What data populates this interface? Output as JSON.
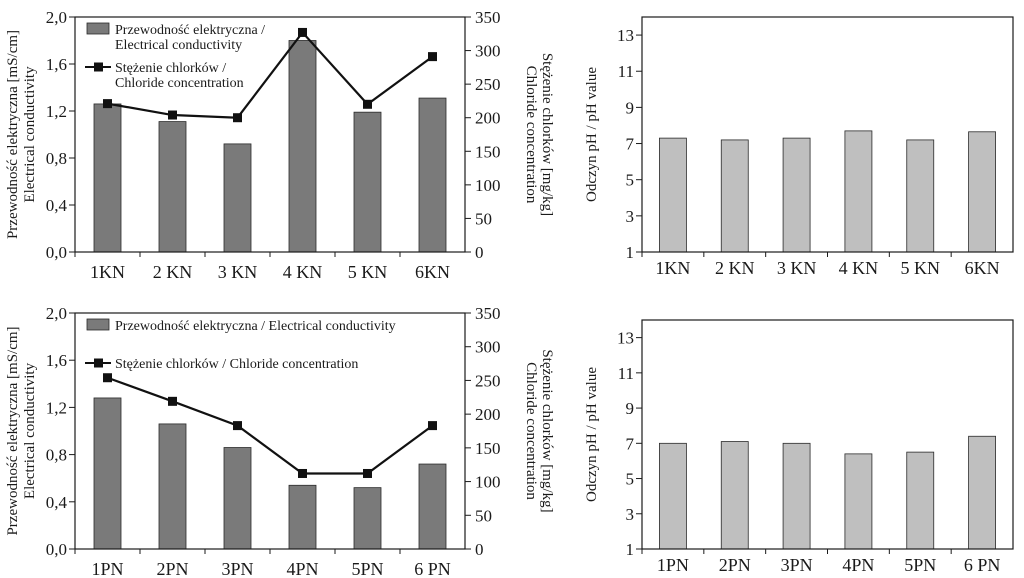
{
  "chart_data": [
    {
      "type": "bar+line",
      "categories": [
        "1KN",
        "2 KN",
        "3 KN",
        "4 KN",
        "5 KN",
        "6KN"
      ],
      "ylabel_left": [
        "Przewodność elektryczna [mS/cm]",
        "Electrical conductivity"
      ],
      "ylabel_right": [
        "Stężenie chlorków [mg/kg]",
        "Chloride concentration"
      ],
      "ylim_left": [
        0,
        2
      ],
      "yticks_left": [
        "0,0",
        "0,4",
        "0,8",
        "1,2",
        "1,6",
        "2,0"
      ],
      "ylim_right": [
        0,
        350
      ],
      "yticks_right": [
        "0",
        "50",
        "100",
        "150",
        "200",
        "250",
        "300",
        "350"
      ],
      "legend": {
        "placement": "top-left",
        "bar_label": [
          "Przewodność elektryczna /",
          "Electrical conductivity"
        ],
        "line_label": [
          "Stężenie chlorków /",
          "Chloride concentration"
        ]
      },
      "series": [
        {
          "kind": "bar",
          "axis": "left",
          "values": [
            1.26,
            1.11,
            0.92,
            1.8,
            1.19,
            1.31
          ]
        },
        {
          "kind": "line",
          "axis": "right",
          "values": [
            221,
            204,
            200,
            327,
            220,
            291
          ]
        }
      ]
    },
    {
      "type": "bar",
      "categories": [
        "1KN",
        "2 KN",
        "3 KN",
        "4 KN",
        "5 KN",
        "6KN"
      ],
      "ylabel": [
        "Odczyn pH / pH value"
      ],
      "ylim": [
        1,
        14
      ],
      "yticks": [
        "1",
        "3",
        "5",
        "7",
        "9",
        "11",
        "13"
      ],
      "values": [
        7.3,
        7.2,
        7.3,
        7.7,
        7.2,
        7.65
      ]
    },
    {
      "type": "bar+line",
      "categories": [
        "1PN",
        "2PN",
        "3PN",
        "4PN",
        "5PN",
        "6 PN"
      ],
      "ylabel_left": [
        "Przewodność elektryczna [mS/cm]",
        "Electrical conductivity"
      ],
      "ylabel_right": [
        "Stężenie chlorków [mg/kg]",
        "Chloride concentration"
      ],
      "ylim_left": [
        0,
        2
      ],
      "yticks_left": [
        "0,0",
        "0,4",
        "0,8",
        "1,2",
        "1,6",
        "2,0"
      ],
      "ylim_right": [
        0,
        350
      ],
      "yticks_right": [
        "0",
        "50",
        "100",
        "150",
        "200",
        "250",
        "300",
        "350"
      ],
      "legend": {
        "placement": "top-left",
        "bar_label": [
          "Przewodność elektryczna / Electrical conductivity"
        ],
        "line_label": [
          "Stężenie chlorków / Chloride concentration"
        ]
      },
      "series": [
        {
          "kind": "bar",
          "axis": "left",
          "values": [
            1.28,
            1.06,
            0.86,
            0.54,
            0.52,
            0.72
          ]
        },
        {
          "kind": "line",
          "axis": "right",
          "values": [
            254,
            219,
            183,
            112,
            112,
            183
          ]
        }
      ]
    },
    {
      "type": "bar",
      "categories": [
        "1PN",
        "2PN",
        "3PN",
        "4PN",
        "5PN",
        "6 PN"
      ],
      "ylabel": [
        "Odczyn pH / pH value"
      ],
      "ylim": [
        1,
        14
      ],
      "yticks": [
        "1",
        "3",
        "5",
        "7",
        "9",
        "11",
        "13"
      ],
      "values": [
        7.0,
        7.1,
        7.0,
        6.4,
        6.5,
        7.4
      ]
    }
  ],
  "colors": {
    "conductivity_bar": "#7a7a7a",
    "ph_bar": "#bfbfbf",
    "line": "#111111",
    "axis": "#1a1a1a"
  }
}
